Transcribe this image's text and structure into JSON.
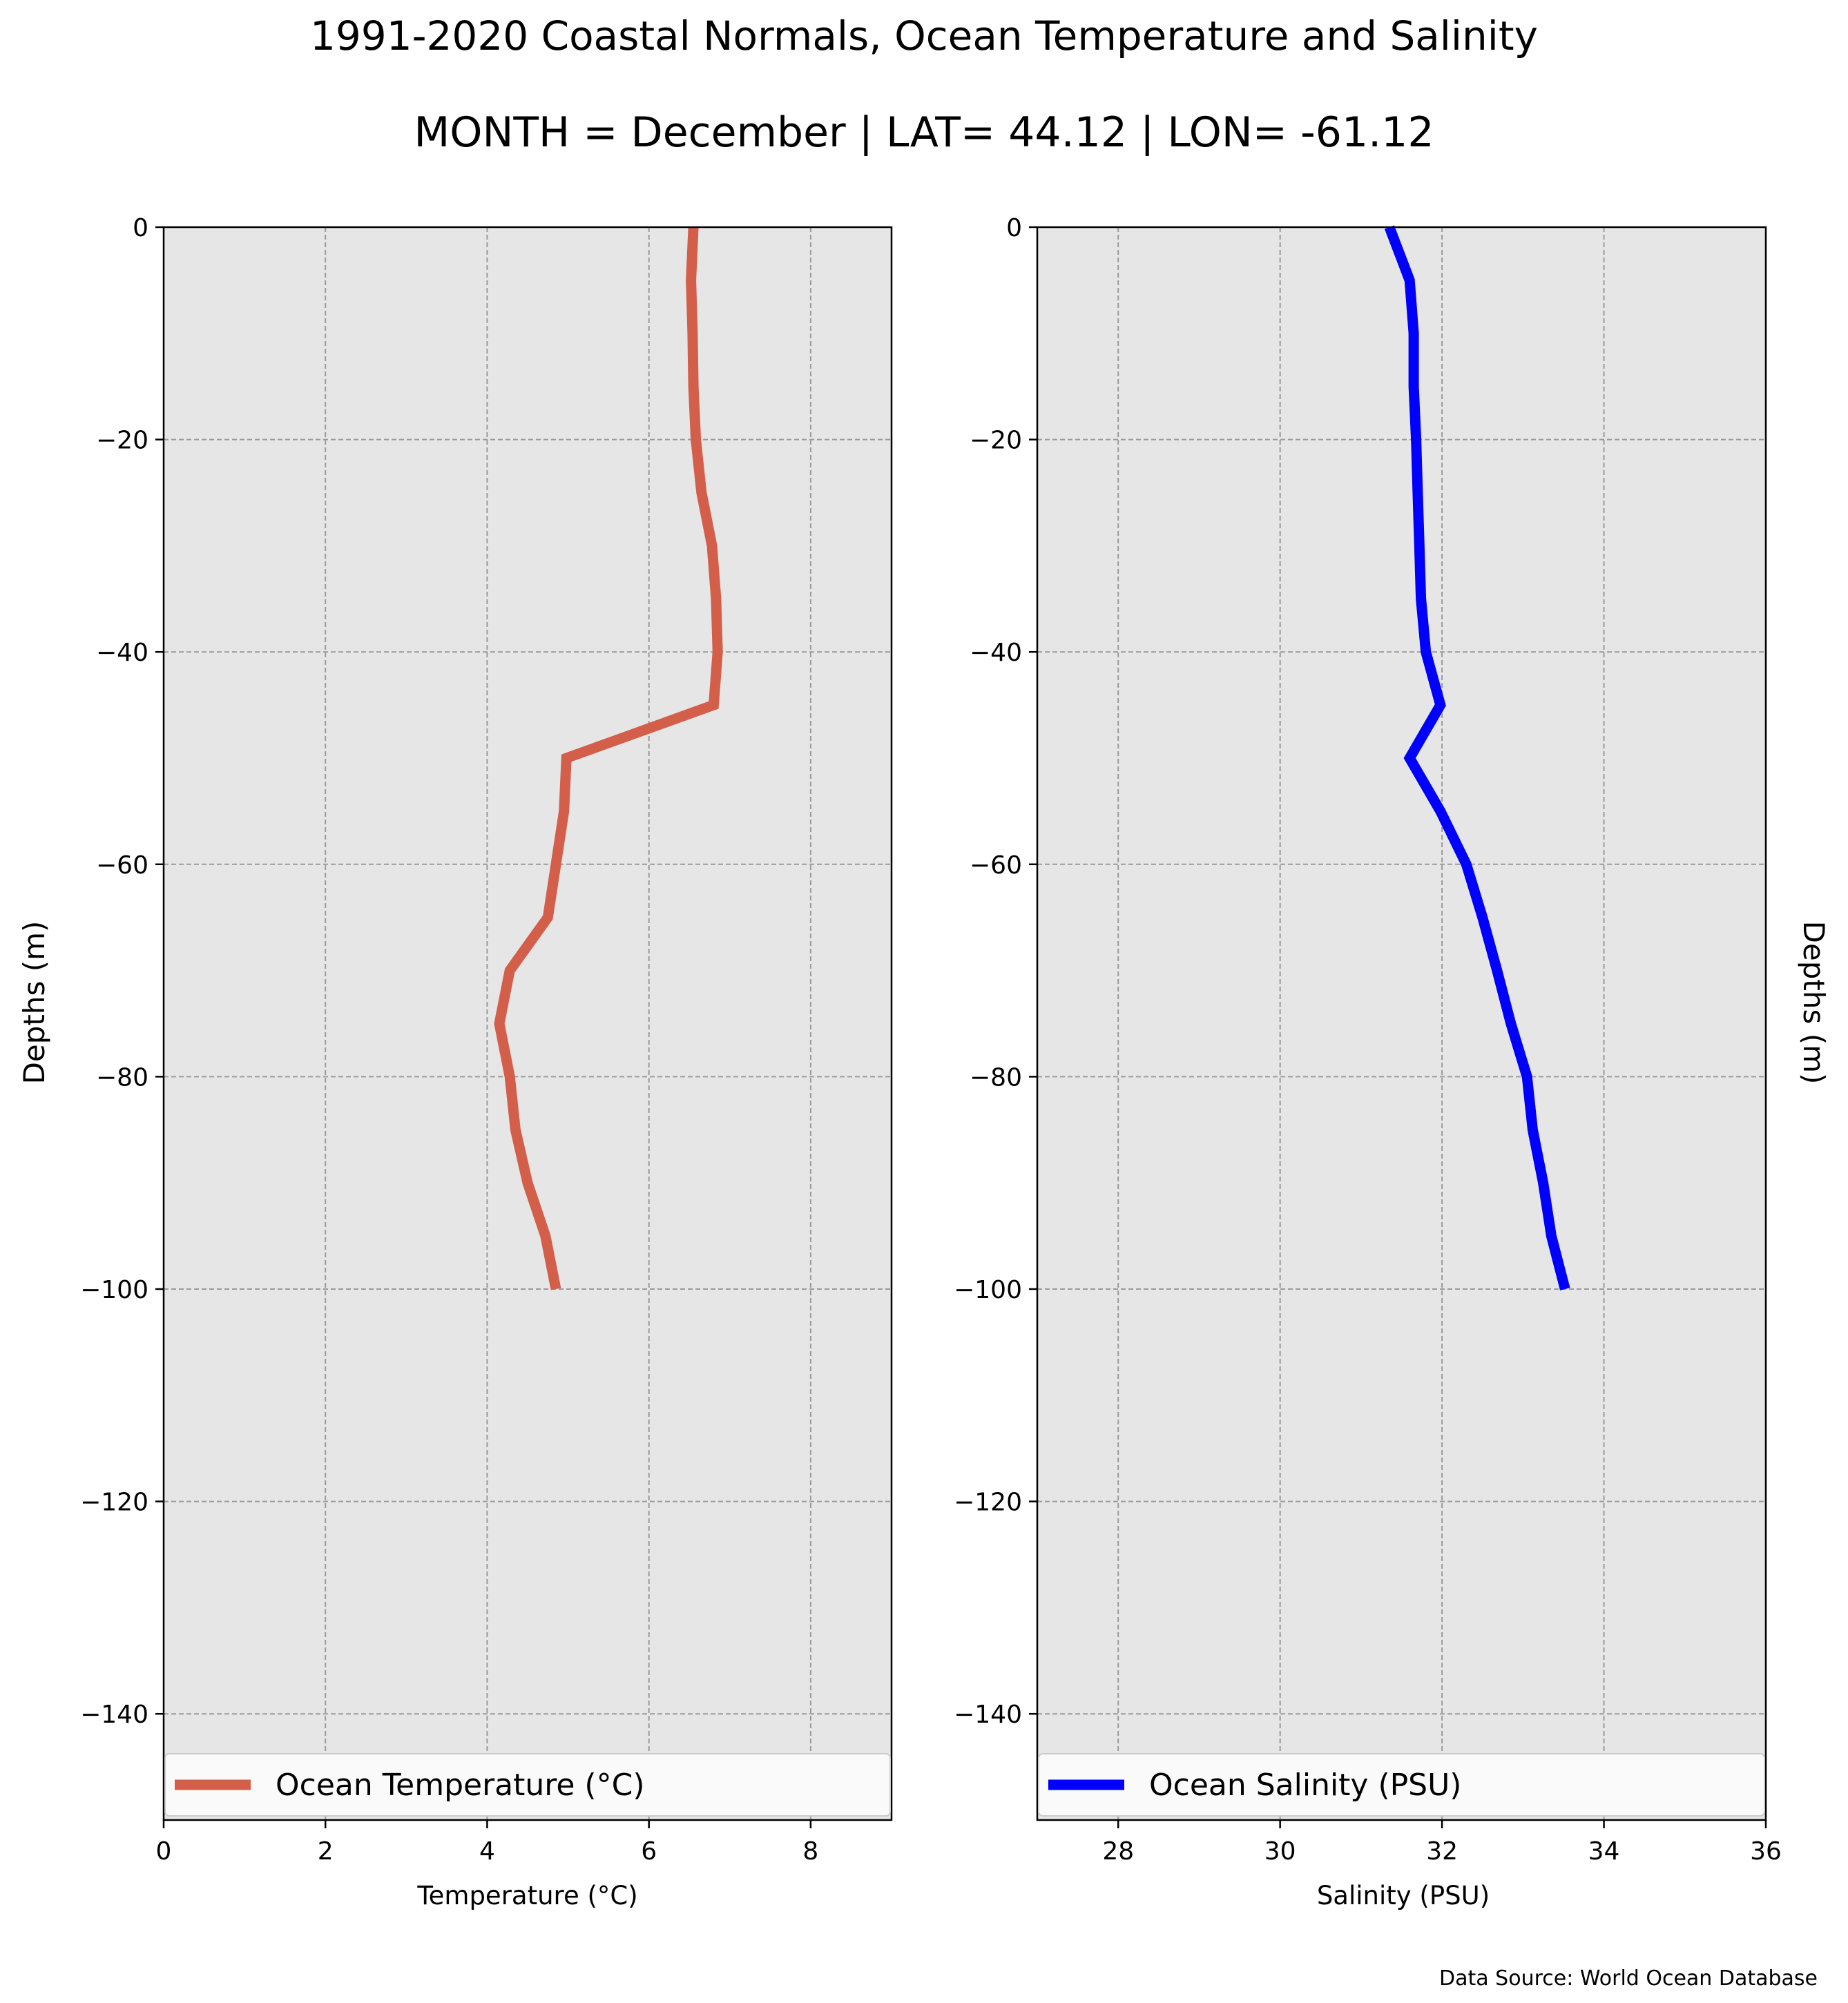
{
  "title": "1991-2020 Coastal Normals, Ocean Temperature and Salinity",
  "subtitle": "MONTH = December | LAT= 44.12 | LON= -61.12",
  "source": "Data Source: World Ocean Database",
  "colors": {
    "background": "#e6e6e6",
    "temperature": "#d35f4b",
    "salinity": "#0000ff",
    "grid": "#9a9a9a"
  },
  "chart_data": [
    {
      "type": "line",
      "xlabel": "Temperature (°C)",
      "ylabel": "Depths (m)",
      "xlim": [
        0,
        9
      ],
      "ylim": [
        -150,
        0
      ],
      "xticks": [
        0,
        2,
        4,
        6,
        8
      ],
      "xtick_labels": [
        "0",
        "2",
        "4",
        "6",
        "8"
      ],
      "yticks": [
        0,
        -20,
        -40,
        -60,
        -80,
        -100,
        -120,
        -140
      ],
      "ytick_labels": [
        "0",
        "−20",
        "−40",
        "−60",
        "−80",
        "−100",
        "−120",
        "−140"
      ],
      "grid": true,
      "legend": "bottom",
      "series": [
        {
          "name": "Ocean Temperature (°C)",
          "x": [
            6.55,
            6.52,
            6.54,
            6.55,
            6.58,
            6.65,
            6.78,
            6.83,
            6.85,
            6.8,
            4.98,
            4.95,
            4.85,
            4.75,
            4.28,
            4.15,
            4.28,
            4.35,
            4.5,
            4.72,
            4.85
          ],
          "y": [
            0,
            -5,
            -10,
            -15,
            -20,
            -25,
            -30,
            -35,
            -40,
            -45,
            -50,
            -55,
            -60,
            -65,
            -70,
            -75,
            -80,
            -85,
            -90,
            -95,
            -100
          ]
        }
      ]
    },
    {
      "type": "line",
      "xlabel": "Salinity (PSU)",
      "ylabel": "Depths (m)",
      "xlim": [
        27,
        36
      ],
      "ylim": [
        -150,
        0
      ],
      "xticks": [
        28,
        30,
        32,
        34,
        36
      ],
      "xtick_labels": [
        "28",
        "30",
        "32",
        "34",
        "36"
      ],
      "yticks": [
        0,
        -20,
        -40,
        -60,
        -80,
        -100,
        -120,
        -140
      ],
      "ytick_labels": [
        "0",
        "−20",
        "−40",
        "−60",
        "−80",
        "−100",
        "−120",
        "−140"
      ],
      "grid": true,
      "legend": "bottom",
      "series": [
        {
          "name": "Ocean Salinity (PSU)",
          "x": [
            31.35,
            31.6,
            31.65,
            31.65,
            31.68,
            31.7,
            31.72,
            31.74,
            31.8,
            31.98,
            31.6,
            31.98,
            32.3,
            32.5,
            32.68,
            32.85,
            33.05,
            33.12,
            33.25,
            33.35,
            33.52
          ],
          "y": [
            0,
            -5,
            -10,
            -15,
            -20,
            -25,
            -30,
            -35,
            -40,
            -45,
            -50,
            -55,
            -60,
            -65,
            -70,
            -75,
            -80,
            -85,
            -90,
            -95,
            -100
          ]
        }
      ]
    }
  ]
}
